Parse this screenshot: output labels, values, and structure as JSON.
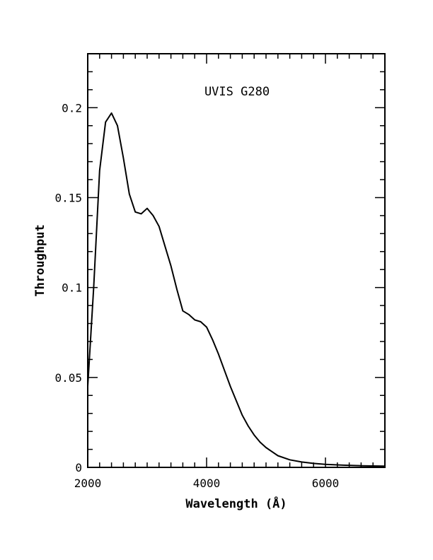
{
  "chart_data": {
    "type": "line",
    "title": "",
    "annotation": "UVIS G280",
    "xlabel": "Wavelength (Å)",
    "ylabel": "Throughput",
    "xlim": [
      2000,
      7000
    ],
    "ylim": [
      0,
      0.23
    ],
    "x_major_ticks": [
      2000,
      4000,
      6000
    ],
    "x_tick_labels": [
      "2000",
      "4000",
      "6000"
    ],
    "y_major_ticks": [
      0,
      0.05,
      0.1,
      0.15,
      0.2
    ],
    "y_tick_labels": [
      "0",
      "0.05",
      "0.1",
      "0.15",
      "0.2"
    ],
    "grid": false,
    "legend": "none",
    "series": [
      {
        "color": "#000000",
        "x": [
          2000,
          2100,
          2200,
          2300,
          2400,
          2500,
          2600,
          2700,
          2800,
          2900,
          3000,
          3100,
          3200,
          3300,
          3400,
          3500,
          3600,
          3700,
          3800,
          3900,
          4000,
          4100,
          4200,
          4300,
          4400,
          4500,
          4600,
          4700,
          4800,
          4900,
          5000,
          5200,
          5400,
          5600,
          5800,
          6000,
          6300,
          6600,
          7000
        ],
        "values": [
          0.045,
          0.1,
          0.165,
          0.192,
          0.197,
          0.19,
          0.172,
          0.152,
          0.142,
          0.141,
          0.144,
          0.14,
          0.134,
          0.123,
          0.112,
          0.099,
          0.087,
          0.085,
          0.082,
          0.081,
          0.078,
          0.071,
          0.063,
          0.054,
          0.045,
          0.037,
          0.029,
          0.023,
          0.018,
          0.014,
          0.011,
          0.0065,
          0.0042,
          0.003,
          0.0022,
          0.0017,
          0.0012,
          0.0009,
          0.0007
        ]
      }
    ]
  }
}
